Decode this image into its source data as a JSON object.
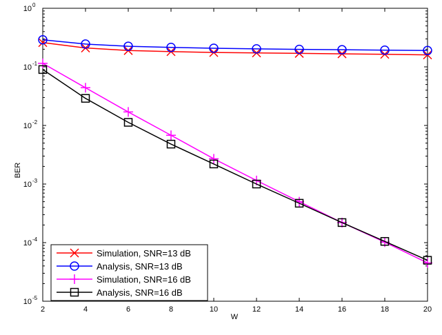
{
  "chart_data": {
    "type": "line",
    "title": "",
    "xlabel": "W",
    "ylabel": "BER",
    "x_scale": "linear",
    "y_scale": "log",
    "xlim": [
      2,
      20
    ],
    "ylim": [
      1e-05,
      1
    ],
    "x_ticks": [
      2,
      4,
      6,
      8,
      10,
      12,
      14,
      16,
      18,
      20
    ],
    "y_ticks": [
      {
        "value": 1,
        "base": "10",
        "exp": "0"
      },
      {
        "value": 0.1,
        "base": "10",
        "exp": "-1"
      },
      {
        "value": 0.01,
        "base": "10",
        "exp": "-2"
      },
      {
        "value": 0.001,
        "base": "10",
        "exp": "-3"
      },
      {
        "value": 0.0001,
        "base": "10",
        "exp": "-4"
      },
      {
        "value": 1e-05,
        "base": "10",
        "exp": "-5"
      }
    ],
    "grid": false,
    "legend_position": "bottom-left",
    "x": [
      2,
      4,
      6,
      8,
      10,
      12,
      14,
      16,
      18,
      20
    ],
    "series": [
      {
        "name": "Simulation, SNR=13 dB",
        "color": "#ff0000",
        "marker": "x",
        "values": [
          0.26,
          0.21,
          0.19,
          0.182,
          0.176,
          0.173,
          0.17,
          0.167,
          0.164,
          0.16
        ]
      },
      {
        "name": "Analysis, SNR=13 dB",
        "color": "#0000ff",
        "marker": "circle",
        "values": [
          0.29,
          0.245,
          0.225,
          0.215,
          0.208,
          0.203,
          0.199,
          0.196,
          0.193,
          0.19
        ]
      },
      {
        "name": "Simulation, SNR=16 dB",
        "color": "#ff00ff",
        "marker": "plus",
        "values": [
          0.115,
          0.044,
          0.017,
          0.0068,
          0.0027,
          0.00115,
          0.0005,
          0.00022,
          0.000102,
          4.5e-05
        ]
      },
      {
        "name": "Analysis, SNR=16 dB",
        "color": "#000000",
        "marker": "square",
        "values": [
          0.09,
          0.029,
          0.0113,
          0.0048,
          0.0022,
          0.001,
          0.00047,
          0.00022,
          0.000105,
          5e-05
        ]
      }
    ]
  }
}
